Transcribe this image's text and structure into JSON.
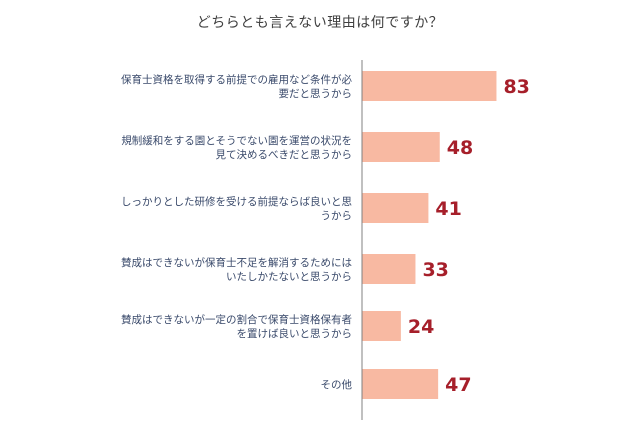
{
  "chart_data": {
    "type": "bar",
    "orientation": "horizontal",
    "title": "どちらとも言えない理由は何ですか？",
    "categories": [
      [
        "保育士資格を取得する前提での雇用など条件が必",
        "要だと思うから"
      ],
      [
        "規制緩和をする園とそうでない園を運営の状況を",
        "見て決めるべきだと思うから"
      ],
      [
        "しっかりとした研修を受ける前提ならば良いと思",
        "うから"
      ],
      [
        "賛成はできないが保育士不足を解消するためには",
        "いたしかたないと思うから"
      ],
      [
        "賛成はできないが一定の割合で保育士資格保有者",
        "を置けば良いと思うから"
      ],
      [
        "その他"
      ]
    ],
    "values": [
      83,
      48,
      41,
      33,
      24,
      47
    ],
    "value_labels": [
      "83",
      "48",
      "41",
      "33",
      "24",
      "47"
    ],
    "xlim": [
      0,
      100
    ],
    "grid": false,
    "legend": "none",
    "colors": {
      "bar": "#F8B9A2",
      "value_text": "#A61F2A",
      "category_text": "#3A4A6B",
      "axis": "#808080",
      "title": "#404040"
    }
  }
}
